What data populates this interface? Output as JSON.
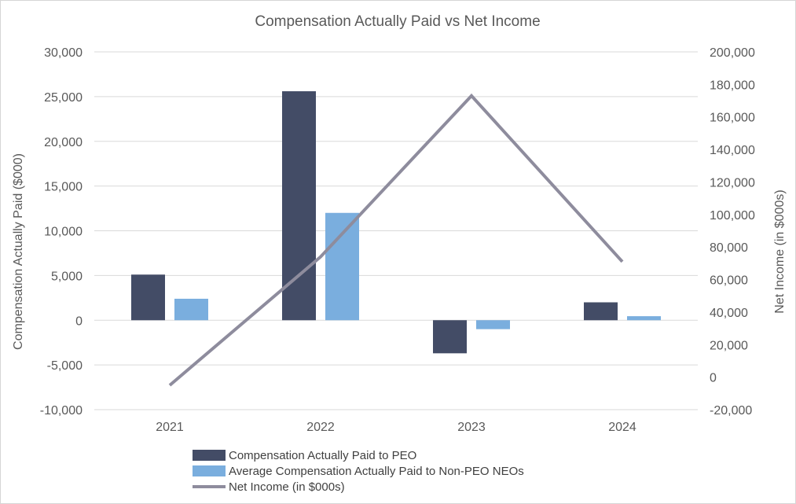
{
  "chart_data": {
    "type": "bar+line",
    "title": "Compensation Actually Paid vs Net Income",
    "categories": [
      "2021",
      "2022",
      "2023",
      "2024"
    ],
    "y_left": {
      "label": "Compensation Actually Paid ($000)",
      "range": [
        -10000,
        30000
      ],
      "ticks": [
        -10000,
        -5000,
        0,
        5000,
        10000,
        15000,
        20000,
        25000,
        30000
      ],
      "tick_labels": [
        "-10,000",
        "-5,000",
        "0",
        "5,000",
        "10,000",
        "15,000",
        "20,000",
        "25,000",
        "30,000"
      ]
    },
    "y_right": {
      "label": "Net Income (in $000s)",
      "range": [
        -20000,
        200000
      ],
      "ticks": [
        -20000,
        0,
        20000,
        40000,
        60000,
        80000,
        100000,
        120000,
        140000,
        160000,
        180000,
        200000
      ],
      "tick_labels": [
        "-20,000",
        "0",
        "20,000",
        "40,000",
        "60,000",
        "80,000",
        "100,000",
        "120,000",
        "140,000",
        "160,000",
        "180,000",
        "200,000"
      ]
    },
    "grid": true,
    "legend_position": "bottom",
    "series": [
      {
        "name": "Compensation Actually Paid to PEO",
        "type": "bar",
        "axis": "left",
        "color": "#434c66",
        "values": [
          5100,
          25600,
          -3700,
          2000
        ]
      },
      {
        "name": "Average Compensation Actually Paid to Non-PEO NEOs",
        "type": "bar",
        "axis": "left",
        "color": "#7aaede",
        "values": [
          2400,
          12000,
          -1000,
          450
        ]
      },
      {
        "name": "Net Income (in $000s)",
        "type": "line",
        "axis": "right",
        "color": "#8e8c9d",
        "values": [
          -5000,
          74000,
          173000,
          71000
        ]
      }
    ]
  }
}
